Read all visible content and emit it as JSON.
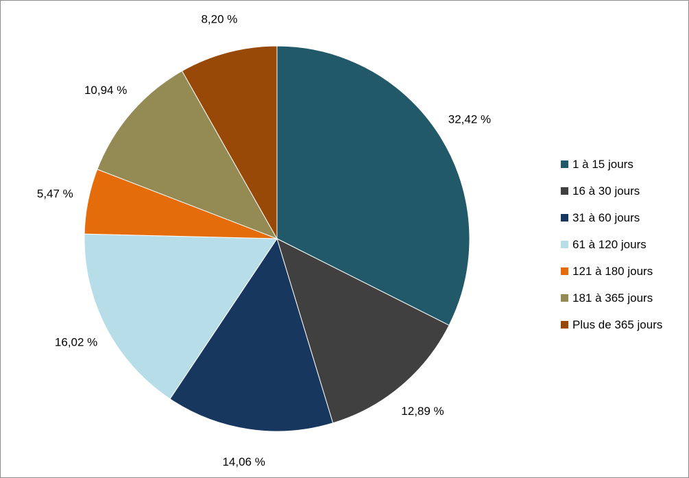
{
  "chart_data": {
    "type": "pie",
    "title": "",
    "start_angle_deg": 0,
    "direction": "clockwise",
    "legend_position": "right",
    "slices": [
      {
        "name": "1 à 15 jours",
        "value": 32.42,
        "label": "32,42 %",
        "color": "#215968"
      },
      {
        "name": "16 à 30 jours",
        "value": 12.89,
        "label": "12,89 %",
        "color": "#404040"
      },
      {
        "name": "31 à 60 jours",
        "value": 14.06,
        "label": "14,06 %",
        "color": "#17375E"
      },
      {
        "name": "61 à 120 jours",
        "value": 16.02,
        "label": "16,02 %",
        "color": "#B7DEE8"
      },
      {
        "name": "121 à 180 jours",
        "value": 5.47,
        "label": "5,47 %",
        "color": "#E46C0A"
      },
      {
        "name": "181 à 365 jours",
        "value": 10.94,
        "label": "10,94 %",
        "color": "#948A54"
      },
      {
        "name": "Plus de 365 jours",
        "value": 8.2,
        "label": "8,20 %",
        "color": "#984807"
      }
    ]
  }
}
